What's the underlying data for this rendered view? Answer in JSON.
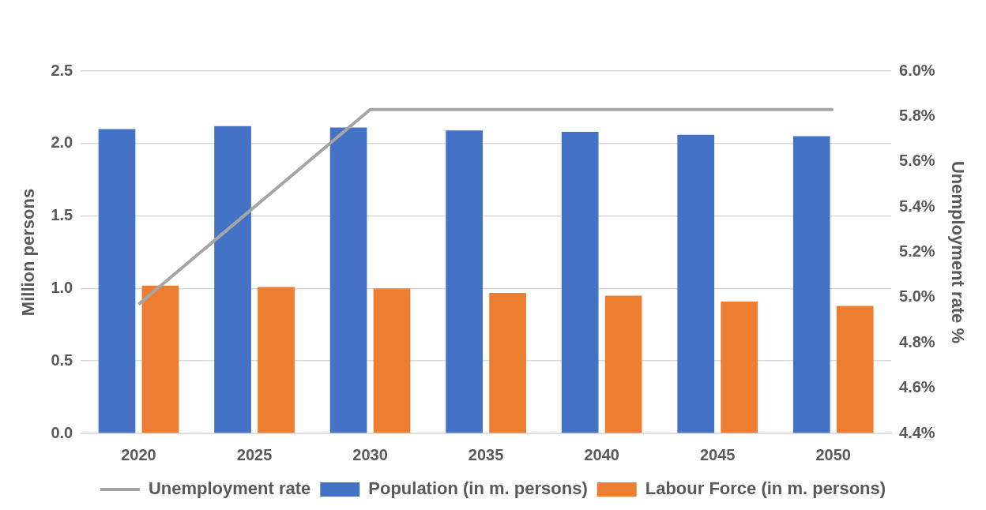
{
  "chart_data": {
    "type": "bar",
    "ylabel": "Million persons",
    "y2label": "Unemployment rate %",
    "categories": [
      "2020",
      "2025",
      "2030",
      "2035",
      "2040",
      "2045",
      "2050"
    ],
    "series": [
      {
        "name": "Population (in m. persons)",
        "color": "#4472c4",
        "values": [
          2.1,
          2.12,
          2.11,
          2.09,
          2.08,
          2.06,
          2.05
        ]
      },
      {
        "name": "Labour Force (in m. persons)",
        "color": "#ed7d31",
        "values": [
          1.02,
          1.01,
          1.0,
          0.97,
          0.95,
          0.91,
          0.88
        ]
      },
      {
        "name": "Unemployment rate",
        "type": "line",
        "axis": "y2",
        "color": "#a5a5a5",
        "marker": "none",
        "line_style": "solid",
        "values": [
          4.97,
          5.4,
          5.83,
          5.83,
          5.83,
          5.83,
          5.83
        ]
      }
    ],
    "ylim": [
      0,
      2.5
    ],
    "yticks": [
      {
        "value": 0,
        "label": "0.0"
      },
      {
        "value": 0.5,
        "label": "0.5"
      },
      {
        "value": 1,
        "label": "1.0"
      },
      {
        "value": 1.5,
        "label": "1.5"
      },
      {
        "value": 2,
        "label": "2.0"
      },
      {
        "value": 2.5,
        "label": "2.5"
      }
    ],
    "y2lim": [
      4.4,
      6.0
    ],
    "y2ticks": [
      {
        "value": 4.4,
        "label": "4.4%"
      },
      {
        "value": 4.6,
        "label": "4.6%"
      },
      {
        "value": 4.8,
        "label": "4.8%"
      },
      {
        "value": 5.0,
        "label": "5.0%"
      },
      {
        "value": 5.2,
        "label": "5.2%"
      },
      {
        "value": 5.4,
        "label": "5.4%"
      },
      {
        "value": 5.6,
        "label": "5.6%"
      },
      {
        "value": 5.8,
        "label": "5.8%"
      },
      {
        "value": 6.0,
        "label": "6.0%"
      }
    ],
    "grid": "y",
    "legend": "bottom"
  }
}
